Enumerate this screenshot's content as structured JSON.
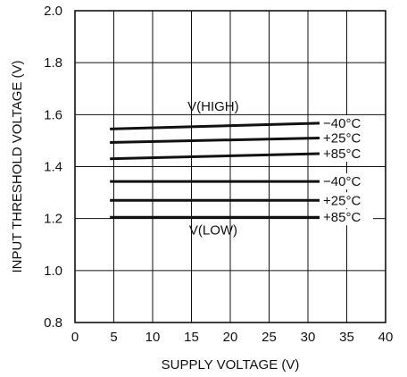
{
  "chart_data": {
    "type": "line",
    "xlabel": "SUPPLY VOLTAGE (V)",
    "ylabel": "INPUT THRESHOLD VOLTAGE (V)",
    "xlim": [
      0,
      40
    ],
    "ylim": [
      0.8,
      2.0
    ],
    "x_ticks": [
      0,
      5,
      10,
      15,
      20,
      25,
      30,
      35,
      40
    ],
    "y_ticks": [
      0.8,
      1.0,
      1.2,
      1.4,
      1.6,
      1.8,
      2.0
    ],
    "x_tick_labels": [
      "0",
      "5",
      "10",
      "15",
      "20",
      "25",
      "30",
      "35",
      "40"
    ],
    "y_tick_labels": [
      "0.8",
      "1.0",
      "1.2",
      "1.4",
      "1.6",
      "1.8",
      "2.0"
    ],
    "grid": true,
    "series": [
      {
        "name": "V(HIGH) −40°C",
        "label": "−40°C",
        "x": [
          4.5,
          31.5
        ],
        "y": [
          1.545,
          1.567
        ]
      },
      {
        "name": "V(HIGH) +25°C",
        "label": "+25°C",
        "x": [
          4.5,
          31.5
        ],
        "y": [
          1.493,
          1.51
        ]
      },
      {
        "name": "V(HIGH) +85°C",
        "label": "+85°C",
        "x": [
          4.5,
          31.5
        ],
        "y": [
          1.43,
          1.45
        ]
      },
      {
        "name": "V(LOW) −40°C",
        "label": "−40°C",
        "x": [
          4.5,
          31.5
        ],
        "y": [
          1.343,
          1.343
        ]
      },
      {
        "name": "V(LOW) +25°C",
        "label": "+25°C",
        "x": [
          4.5,
          31.5
        ],
        "y": [
          1.27,
          1.27
        ]
      },
      {
        "name": "V(LOW) +85°C",
        "label": "+85°C",
        "x": [
          4.5,
          31.5
        ],
        "y": [
          1.205,
          1.205
        ]
      }
    ],
    "annotations": [
      {
        "text": "V(HIGH)",
        "x": 14.5,
        "y": 1.615
      },
      {
        "text": "V(LOW)",
        "x": 14.7,
        "y": 1.138
      }
    ],
    "colors": {
      "line": "#111111",
      "grid": "#111111",
      "background": "#ffffff"
    }
  }
}
